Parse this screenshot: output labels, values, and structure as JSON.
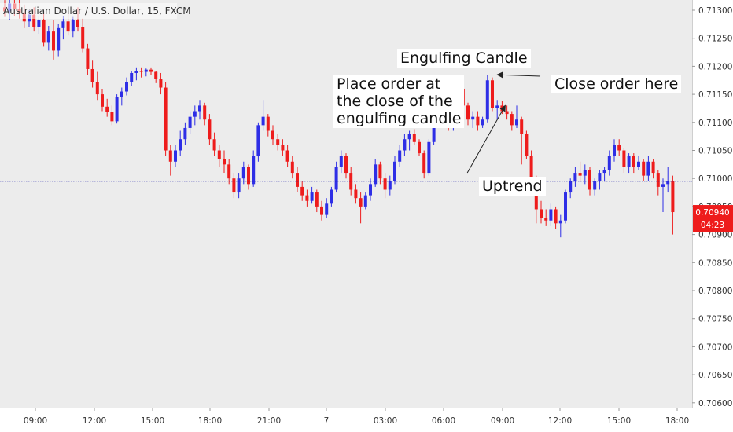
{
  "chart_data": {
    "type": "candlestick",
    "title": "Australian Dollar / U.S. Dollar, 15, FXCM",
    "colors": {
      "up": "#2e2ee6",
      "down": "#ee1c1c",
      "price_line": "#1a1aa8",
      "badge": "#ee1c1c",
      "background": "#ececec"
    },
    "ylim": [
      0.70575,
      0.71325
    ],
    "y_ticks": [
      "0.71300",
      "0.71250",
      "0.71200",
      "0.71150",
      "0.71100",
      "0.71050",
      "0.71000",
      "0.70950",
      "0.70900",
      "0.70850",
      "0.70800",
      "0.70750",
      "0.70700",
      "0.70650",
      "0.70600"
    ],
    "x_ticks": [
      "09:00",
      "12:00",
      "15:00",
      "18:00",
      "21:00",
      "7",
      "03:00",
      "06:00",
      "09:00",
      "12:00",
      "15:00",
      "18:00"
    ],
    "last_price": "0.70940",
    "countdown": "04:23",
    "candles": [
      [
        0.71305,
        0.71318,
        0.71288,
        0.71298
      ],
      [
        0.71298,
        0.71322,
        0.71282,
        0.71312
      ],
      [
        0.71312,
        0.7133,
        0.7129,
        0.71302
      ],
      [
        0.71302,
        0.71325,
        0.71285,
        0.71296
      ],
      [
        0.71296,
        0.7131,
        0.71268,
        0.7128
      ],
      [
        0.7128,
        0.713,
        0.7127,
        0.71292
      ],
      [
        0.71292,
        0.71305,
        0.71262,
        0.7127
      ],
      [
        0.7127,
        0.7129,
        0.71258,
        0.71282
      ],
      [
        0.71282,
        0.71298,
        0.71235,
        0.71242
      ],
      [
        0.71242,
        0.71272,
        0.71228,
        0.71262
      ],
      [
        0.71262,
        0.71282,
        0.71212,
        0.71228
      ],
      [
        0.71228,
        0.71275,
        0.71218,
        0.71268
      ],
      [
        0.71268,
        0.7129,
        0.71248,
        0.7128
      ],
      [
        0.7128,
        0.71298,
        0.71255,
        0.71262
      ],
      [
        0.71262,
        0.71288,
        0.71252,
        0.71282
      ],
      [
        0.71282,
        0.71305,
        0.71262,
        0.7127
      ],
      [
        0.7127,
        0.71285,
        0.71225,
        0.71232
      ],
      [
        0.71232,
        0.7124,
        0.71185,
        0.71195
      ],
      [
        0.71195,
        0.7121,
        0.71162,
        0.71172
      ],
      [
        0.71172,
        0.7119,
        0.7114,
        0.7115
      ],
      [
        0.7115,
        0.7116,
        0.7112,
        0.71128
      ],
      [
        0.71128,
        0.71142,
        0.7111,
        0.71118
      ],
      [
        0.71118,
        0.7113,
        0.71095,
        0.71102
      ],
      [
        0.71102,
        0.7115,
        0.71098,
        0.71145
      ],
      [
        0.71145,
        0.71162,
        0.7113,
        0.71155
      ],
      [
        0.71155,
        0.7118,
        0.71148,
        0.71172
      ],
      [
        0.71172,
        0.71192,
        0.71165,
        0.71188
      ],
      [
        0.71188,
        0.71198,
        0.71175,
        0.71192
      ],
      [
        0.71192,
        0.71198,
        0.7118,
        0.7119
      ],
      [
        0.7119,
        0.71196,
        0.71182,
        0.71194
      ],
      [
        0.71194,
        0.71198,
        0.71185,
        0.7119
      ],
      [
        0.7119,
        0.71192,
        0.7117,
        0.71178
      ],
      [
        0.71178,
        0.71188,
        0.7115,
        0.71162
      ],
      [
        0.71162,
        0.71172,
        0.7104,
        0.7105
      ],
      [
        0.7105,
        0.7106,
        0.71005,
        0.7103
      ],
      [
        0.7103,
        0.7106,
        0.7102,
        0.7105
      ],
      [
        0.7105,
        0.71085,
        0.7104,
        0.7107
      ],
      [
        0.7107,
        0.711,
        0.7106,
        0.7109
      ],
      [
        0.7109,
        0.7112,
        0.7108,
        0.7111
      ],
      [
        0.7111,
        0.7113,
        0.71095,
        0.7112
      ],
      [
        0.7112,
        0.7114,
        0.71105,
        0.7113
      ],
      [
        0.7113,
        0.71135,
        0.71095,
        0.71105
      ],
      [
        0.71105,
        0.71115,
        0.7106,
        0.7107
      ],
      [
        0.7107,
        0.71082,
        0.7104,
        0.7105
      ],
      [
        0.7105,
        0.7106,
        0.7102,
        0.71035
      ],
      [
        0.71035,
        0.7105,
        0.7101,
        0.71025
      ],
      [
        0.71025,
        0.71035,
        0.7099,
        0.71
      ],
      [
        0.71,
        0.7101,
        0.70965,
        0.70975
      ],
      [
        0.70975,
        0.7101,
        0.70965,
        0.71
      ],
      [
        0.71,
        0.7103,
        0.7099,
        0.7102
      ],
      [
        0.7102,
        0.71025,
        0.7098,
        0.7099
      ],
      [
        0.7099,
        0.7105,
        0.70985,
        0.7104
      ],
      [
        0.7104,
        0.711,
        0.7103,
        0.71095
      ],
      [
        0.71095,
        0.7114,
        0.71085,
        0.7111
      ],
      [
        0.7111,
        0.71115,
        0.71075,
        0.71085
      ],
      [
        0.71085,
        0.71095,
        0.7106,
        0.7107
      ],
      [
        0.7107,
        0.7108,
        0.7105,
        0.7106
      ],
      [
        0.7106,
        0.7107,
        0.7104,
        0.7105
      ],
      [
        0.7105,
        0.7106,
        0.7102,
        0.7103
      ],
      [
        0.7103,
        0.7104,
        0.71,
        0.7101
      ],
      [
        0.7101,
        0.7102,
        0.70975,
        0.70985
      ],
      [
        0.70985,
        0.70995,
        0.7096,
        0.7097
      ],
      [
        0.7097,
        0.7098,
        0.7095,
        0.7096
      ],
      [
        0.7096,
        0.70985,
        0.70955,
        0.70975
      ],
      [
        0.70975,
        0.7098,
        0.7094,
        0.7095
      ],
      [
        0.7095,
        0.7096,
        0.70925,
        0.70935
      ],
      [
        0.70935,
        0.70965,
        0.7093,
        0.70955
      ],
      [
        0.70955,
        0.70985,
        0.7095,
        0.7098
      ],
      [
        0.7098,
        0.7103,
        0.70975,
        0.7102
      ],
      [
        0.7102,
        0.7105,
        0.7101,
        0.7104
      ],
      [
        0.7104,
        0.71045,
        0.71,
        0.7101
      ],
      [
        0.7101,
        0.7102,
        0.7097,
        0.7098
      ],
      [
        0.7098,
        0.7099,
        0.70955,
        0.70965
      ],
      [
        0.70965,
        0.70975,
        0.7092,
        0.7095
      ],
      [
        0.7095,
        0.70975,
        0.70945,
        0.7097
      ],
      [
        0.7097,
        0.71,
        0.7096,
        0.7099
      ],
      [
        0.7099,
        0.71035,
        0.70985,
        0.71025
      ],
      [
        0.71025,
        0.7103,
        0.7099,
        0.71
      ],
      [
        0.71,
        0.7101,
        0.70965,
        0.7098
      ],
      [
        0.7098,
        0.71005,
        0.7097,
        0.70995
      ],
      [
        0.70995,
        0.7104,
        0.7099,
        0.7103
      ],
      [
        0.7103,
        0.7106,
        0.7102,
        0.7105
      ],
      [
        0.7105,
        0.7108,
        0.7104,
        0.7107
      ],
      [
        0.7107,
        0.71085,
        0.7105,
        0.7108
      ],
      [
        0.7108,
        0.71088,
        0.7106,
        0.71065
      ],
      [
        0.71065,
        0.7107,
        0.7104,
        0.71045
      ],
      [
        0.71045,
        0.7105,
        0.71,
        0.7101
      ],
      [
        0.7101,
        0.7107,
        0.71005,
        0.71065
      ],
      [
        0.71065,
        0.7118,
        0.7106,
        0.7117
      ],
      [
        0.7117,
        0.71175,
        0.71145,
        0.7115
      ],
      [
        0.7115,
        0.7116,
        0.7111,
        0.7112
      ],
      [
        0.7112,
        0.71125,
        0.71085,
        0.7109
      ],
      [
        0.7109,
        0.7115,
        0.71085,
        0.7114
      ],
      [
        0.7114,
        0.7118,
        0.7113,
        0.7116
      ],
      [
        0.7116,
        0.7117,
        0.7112,
        0.7113
      ],
      [
        0.7113,
        0.71135,
        0.71095,
        0.71105
      ],
      [
        0.71105,
        0.7112,
        0.7109,
        0.7111
      ],
      [
        0.7111,
        0.7112,
        0.71085,
        0.71095
      ],
      [
        0.71095,
        0.7111,
        0.7109,
        0.71105
      ],
      [
        0.71105,
        0.71185,
        0.711,
        0.71175
      ],
      [
        0.71175,
        0.7118,
        0.7112,
        0.71125
      ],
      [
        0.71125,
        0.7114,
        0.71105,
        0.7113
      ],
      [
        0.7113,
        0.71138,
        0.71115,
        0.7112
      ],
      [
        0.7112,
        0.7113,
        0.71105,
        0.71115
      ],
      [
        0.71115,
        0.7112,
        0.71085,
        0.71095
      ],
      [
        0.71095,
        0.7113,
        0.7109,
        0.71105
      ],
      [
        0.71105,
        0.7111,
        0.71025,
        0.7108
      ],
      [
        0.7108,
        0.71085,
        0.71035,
        0.7104
      ],
      [
        0.7104,
        0.7105,
        0.70985,
        0.70995
      ],
      [
        0.70995,
        0.71005,
        0.7092,
        0.70945
      ],
      [
        0.70945,
        0.7096,
        0.7092,
        0.7093
      ],
      [
        0.7093,
        0.70945,
        0.70915,
        0.70925
      ],
      [
        0.70925,
        0.70955,
        0.70915,
        0.70945
      ],
      [
        0.70945,
        0.7095,
        0.7091,
        0.7092
      ],
      [
        0.7092,
        0.70935,
        0.70895,
        0.70925
      ],
      [
        0.70925,
        0.7098,
        0.7092,
        0.70975
      ],
      [
        0.70975,
        0.71,
        0.70965,
        0.70995
      ],
      [
        0.70995,
        0.7102,
        0.70985,
        0.7101
      ],
      [
        0.7101,
        0.7103,
        0.70995,
        0.71005
      ],
      [
        0.71005,
        0.71025,
        0.7099,
        0.71015
      ],
      [
        0.71015,
        0.7102,
        0.7097,
        0.7098
      ],
      [
        0.7098,
        0.71,
        0.7097,
        0.70995
      ],
      [
        0.70995,
        0.71015,
        0.7098,
        0.7101
      ],
      [
        0.7101,
        0.7102,
        0.70995,
        0.71015
      ],
      [
        0.71015,
        0.7105,
        0.71005,
        0.7104
      ],
      [
        0.7104,
        0.7107,
        0.7103,
        0.7106
      ],
      [
        0.7106,
        0.7107,
        0.7104,
        0.7105
      ],
      [
        0.7105,
        0.71055,
        0.7101,
        0.7102
      ],
      [
        0.7102,
        0.71045,
        0.7101,
        0.7104
      ],
      [
        0.7104,
        0.71045,
        0.7101,
        0.7102
      ],
      [
        0.7102,
        0.7104,
        0.71015,
        0.7103
      ],
      [
        0.7103,
        0.71035,
        0.70995,
        0.71005
      ],
      [
        0.71005,
        0.7104,
        0.70995,
        0.7103
      ],
      [
        0.7103,
        0.71035,
        0.71,
        0.7101
      ],
      [
        0.7101,
        0.71015,
        0.7097,
        0.70985
      ],
      [
        0.70985,
        0.71,
        0.7094,
        0.7099
      ],
      [
        0.7099,
        0.7102,
        0.70975,
        0.70995
      ],
      [
        0.70995,
        0.71005,
        0.709,
        0.7094
      ]
    ],
    "annotations": [
      {
        "text": "Engulfing Candle",
        "target_candle": 85,
        "target_price": 0.71065
      },
      {
        "text": "Place order at\nthe close of the\nengulfing candle",
        "target_candle": 85,
        "target_price": 0.71065
      },
      {
        "text": "Close order here",
        "target_candle": 101,
        "target_price": 0.71185
      },
      {
        "text": "Uptrend",
        "from": {
          "candle": 86,
          "price": 0.70975
        },
        "to": {
          "candle": 102,
          "price": 0.7113
        }
      }
    ]
  }
}
